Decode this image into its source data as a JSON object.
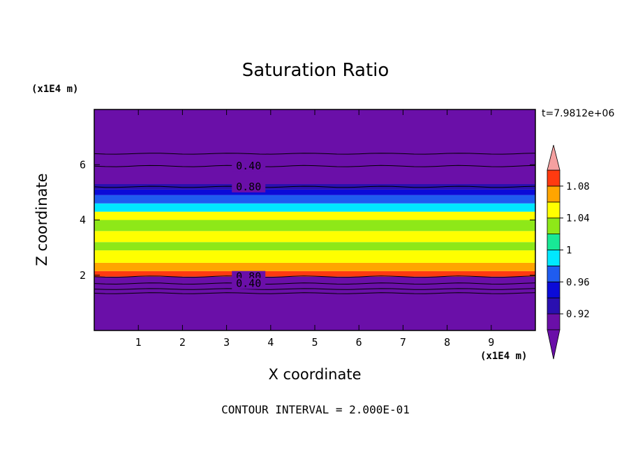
{
  "chart_data": {
    "type": "heatmap",
    "title": "Saturation Ratio",
    "xlabel": "X coordinate",
    "ylabel": "Z coordinate",
    "x_units": "(x1E4 m)",
    "y_units": "(x1E4 m)",
    "xlim": [
      0,
      10
    ],
    "ylim": [
      0,
      8
    ],
    "xticks": [
      1,
      2,
      3,
      4,
      5,
      6,
      7,
      8,
      9
    ],
    "yticks": [
      2,
      4,
      6
    ],
    "timestamp": "t=7.9812e+06",
    "footnote": "CONTOUR INTERVAL = 2.000E-01",
    "colorbar": {
      "levels": [
        0.9,
        0.92,
        0.94,
        0.96,
        0.98,
        1.0,
        1.02,
        1.04,
        1.06,
        1.08,
        1.1
      ],
      "tick_labels": [
        "0.92",
        "0.96",
        "1",
        "1.04",
        "1.08"
      ],
      "tick_values": [
        0.92,
        0.96,
        1.0,
        1.04,
        1.08
      ],
      "colors": [
        "#6a0fa8",
        "#2a0fb0",
        "#0b0bd8",
        "#1f5cf0",
        "#00e8ff",
        "#18e896",
        "#8ee818",
        "#ffff00",
        "#ffa500",
        "#ff3a10",
        "#ff2020"
      ],
      "below_color": "#6a0fa8",
      "above_color": "#f5a0a0",
      "extend": "both"
    },
    "layers": [
      {
        "z": [
          0.0,
          1.95
        ],
        "value": 0.8
      },
      {
        "z": [
          1.95,
          2.15
        ],
        "value": 1.09
      },
      {
        "z": [
          2.15,
          2.45
        ],
        "value": 1.06
      },
      {
        "z": [
          2.45,
          2.9
        ],
        "value": 1.04
      },
      {
        "z": [
          2.9,
          3.2
        ],
        "value": 1.02
      },
      {
        "z": [
          3.2,
          3.6
        ],
        "value": 1.04
      },
      {
        "z": [
          3.6,
          4.0
        ],
        "value": 1.02
      },
      {
        "z": [
          4.0,
          4.3
        ],
        "value": 1.04
      },
      {
        "z": [
          4.3,
          4.6
        ],
        "value": 0.99
      },
      {
        "z": [
          4.6,
          4.9
        ],
        "value": 0.97
      },
      {
        "z": [
          4.9,
          5.1
        ],
        "value": 0.95
      },
      {
        "z": [
          5.1,
          5.3
        ],
        "value": 0.92
      },
      {
        "z": [
          5.3,
          8.0
        ],
        "value": 0.8
      }
    ],
    "contours": [
      {
        "level": "0.40",
        "z": 5.95,
        "label_x": 3.5
      },
      {
        "level": "0.80",
        "z": 5.2,
        "label_x": 3.5
      },
      {
        "level": "0.80",
        "z": 1.95,
        "label_x": 3.5
      },
      {
        "level": "0.40",
        "z": 1.7,
        "label_x": 3.5
      }
    ],
    "extra_contour_z": [
      6.4,
      1.5,
      1.35
    ]
  }
}
